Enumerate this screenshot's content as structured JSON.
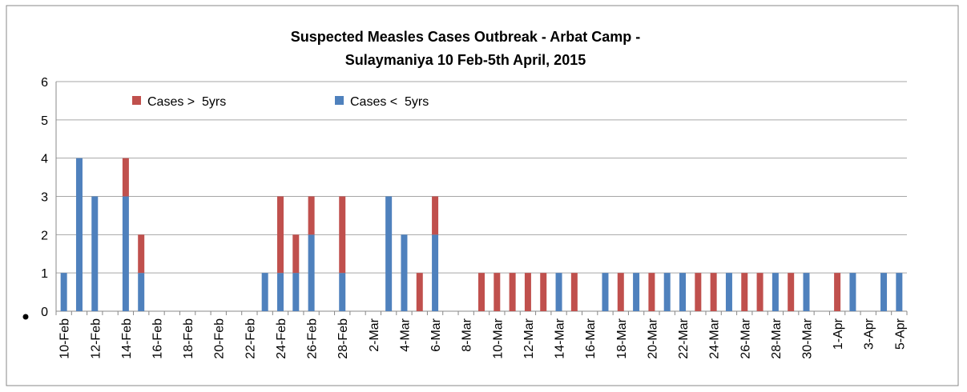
{
  "chart_data": {
    "type": "bar",
    "stacked": true,
    "title": [
      "Suspected Measles Cases Outbreak - Arbat Camp -",
      "Sulaymaniya 10 Feb-5th April, 2015"
    ],
    "categories": [
      "10-Feb",
      null,
      "12-Feb",
      null,
      "14-Feb",
      null,
      "16-Feb",
      null,
      "18-Feb",
      null,
      "20-Feb",
      null,
      "22-Feb",
      null,
      "24-Feb",
      null,
      "26-Feb",
      null,
      "28-Feb",
      null,
      "2-Mar",
      null,
      "4-Mar",
      null,
      "6-Mar",
      null,
      "8-Mar",
      null,
      "10-Mar",
      null,
      "12-Mar",
      null,
      "14-Mar",
      null,
      "16-Mar",
      null,
      "18-Mar",
      null,
      "20-Mar",
      null,
      "22-Mar",
      null,
      "24-Mar",
      null,
      "26-Mar",
      null,
      "28-Mar",
      null,
      "30-Mar",
      null,
      "1-Apr",
      null,
      "3-Apr",
      null,
      "5-Apr"
    ],
    "series": [
      {
        "name": "Cases <  5yrs",
        "color": "#4f81bd",
        "values": [
          1,
          4,
          3,
          0,
          3,
          1,
          0,
          0,
          0,
          0,
          0,
          0,
          0,
          1,
          1,
          1,
          2,
          0,
          1,
          0,
          0,
          3,
          2,
          0,
          2,
          0,
          0,
          0,
          0,
          0,
          0,
          0,
          1,
          0,
          0,
          1,
          0,
          1,
          0,
          1,
          1,
          0,
          0,
          1,
          0,
          0,
          1,
          0,
          1,
          0,
          0,
          1,
          0,
          1,
          1
        ]
      },
      {
        "name": "Cases >  5yrs",
        "color": "#c0504d",
        "values": [
          0,
          0,
          0,
          0,
          1,
          1,
          0,
          0,
          0,
          0,
          0,
          0,
          0,
          0,
          2,
          1,
          1,
          0,
          2,
          0,
          0,
          0,
          0,
          1,
          1,
          0,
          0,
          1,
          1,
          1,
          1,
          1,
          0,
          1,
          0,
          0,
          1,
          0,
          1,
          0,
          0,
          1,
          1,
          0,
          1,
          1,
          0,
          1,
          0,
          0,
          1,
          0,
          0,
          0,
          0
        ]
      }
    ],
    "ylim": [
      0,
      6
    ],
    "yticks": [
      0,
      1,
      2,
      3,
      4,
      5,
      6
    ],
    "grid": true,
    "legend": "top-left"
  }
}
